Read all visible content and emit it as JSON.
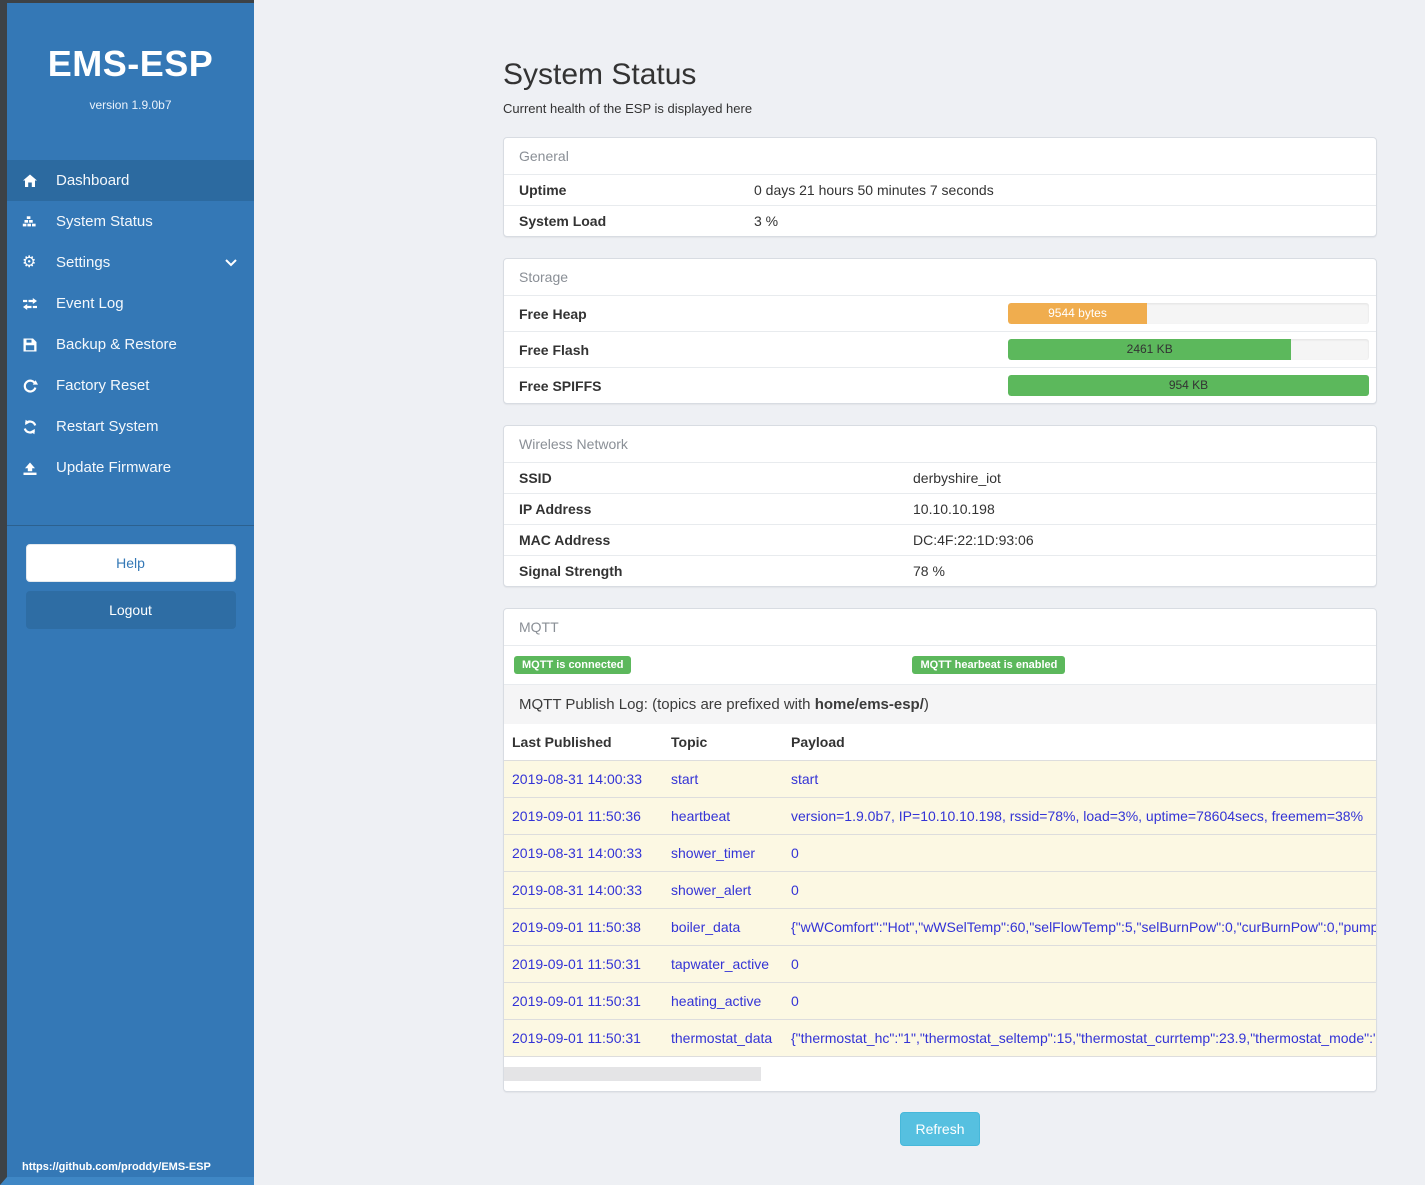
{
  "sidebar": {
    "title": "EMS-ESP",
    "version": "version 1.9.0b7",
    "items": [
      {
        "label": "Dashboard",
        "icon": "home-icon",
        "active": true
      },
      {
        "label": "System Status",
        "icon": "status-blocks-icon",
        "active": false
      },
      {
        "label": "Settings",
        "icon": "gear-icon",
        "active": false,
        "chevron": "down"
      },
      {
        "label": "Event Log",
        "icon": "exchange-icon",
        "active": false
      },
      {
        "label": "Backup & Restore",
        "icon": "save-icon",
        "active": false
      },
      {
        "label": "Factory Reset",
        "icon": "repeat-icon",
        "active": false
      },
      {
        "label": "Restart System",
        "icon": "refresh-icon",
        "active": false
      },
      {
        "label": "Update Firmware",
        "icon": "upload-icon",
        "active": false
      }
    ],
    "help_label": "Help",
    "logout_label": "Logout",
    "footer_link": "https://github.com/proddy/EMS-ESP"
  },
  "page": {
    "title": "System Status",
    "subtitle": "Current health of the ESP is displayed here",
    "refresh_label": "Refresh"
  },
  "general": {
    "heading": "General",
    "rows": [
      {
        "label": "Uptime",
        "value": "0 days 21 hours 50 minutes 7 seconds"
      },
      {
        "label": "System Load",
        "value": "3 %"
      }
    ]
  },
  "storage": {
    "heading": "Storage",
    "rows": [
      {
        "label": "Free Heap",
        "bar_label": "9544 bytes",
        "percent": 38.5,
        "color": "#f0ad4e",
        "text_color": "#ffffff"
      },
      {
        "label": "Free Flash",
        "bar_label": "2461 KB",
        "percent": 78.5,
        "color": "#5cb85c",
        "text_color": "#333333"
      },
      {
        "label": "Free SPIFFS",
        "bar_label": "954 KB",
        "percent": 100,
        "color": "#5cb85c",
        "text_color": "#333333"
      }
    ]
  },
  "wireless": {
    "heading": "Wireless Network",
    "rows": [
      {
        "label": "SSID",
        "value": "derbyshire_iot"
      },
      {
        "label": "IP Address",
        "value": "10.10.10.198"
      },
      {
        "label": "MAC Address",
        "value": "DC:4F:22:1D:93:06"
      },
      {
        "label": "Signal Strength",
        "value": "78 %"
      }
    ]
  },
  "mqtt": {
    "heading": "MQTT",
    "badges": [
      {
        "label": "MQTT is connected"
      },
      {
        "label": "MQTT hearbeat is enabled"
      }
    ],
    "log_title_prefix": "MQTT Publish Log: (topics are prefixed with ",
    "log_title_bold": "home/ems-esp/",
    "log_title_suffix": ")",
    "columns": [
      "Last Published",
      "Topic",
      "Payload"
    ],
    "rows": [
      {
        "time": "2019-08-31 14:00:33",
        "topic": "start",
        "payload": "start"
      },
      {
        "time": "2019-09-01 11:50:36",
        "topic": "heartbeat",
        "payload": "version=1.9.0b7, IP=10.10.10.198, rssid=78%, load=3%, uptime=78604secs, freemem=38%"
      },
      {
        "time": "2019-08-31 14:00:33",
        "topic": "shower_timer",
        "payload": "0"
      },
      {
        "time": "2019-08-31 14:00:33",
        "topic": "shower_alert",
        "payload": "0"
      },
      {
        "time": "2019-09-01 11:50:38",
        "topic": "boiler_data",
        "payload": "{\"wWComfort\":\"Hot\",\"wWSelTemp\":60,\"selFlowTemp\":5,\"selBurnPow\":0,\"curBurnPow\":0,\"pump"
      },
      {
        "time": "2019-09-01 11:50:31",
        "topic": "tapwater_active",
        "payload": "0"
      },
      {
        "time": "2019-09-01 11:50:31",
        "topic": "heating_active",
        "payload": "0"
      },
      {
        "time": "2019-09-01 11:50:31",
        "topic": "thermostat_data",
        "payload": "{\"thermostat_hc\":\"1\",\"thermostat_seltemp\":15,\"thermostat_currtemp\":23.9,\"thermostat_mode\":\""
      }
    ]
  },
  "colors": {
    "sidebar_blue": "#3478b6",
    "sidebar_active": "#2c6aa0",
    "badge_green": "#5cb85c",
    "bar_orange": "#f0ad4e",
    "bar_green": "#5cb85c",
    "refresh_blue": "#56c0e0",
    "link_blue": "#3333d6",
    "row_yellow": "#fcf8e3"
  }
}
